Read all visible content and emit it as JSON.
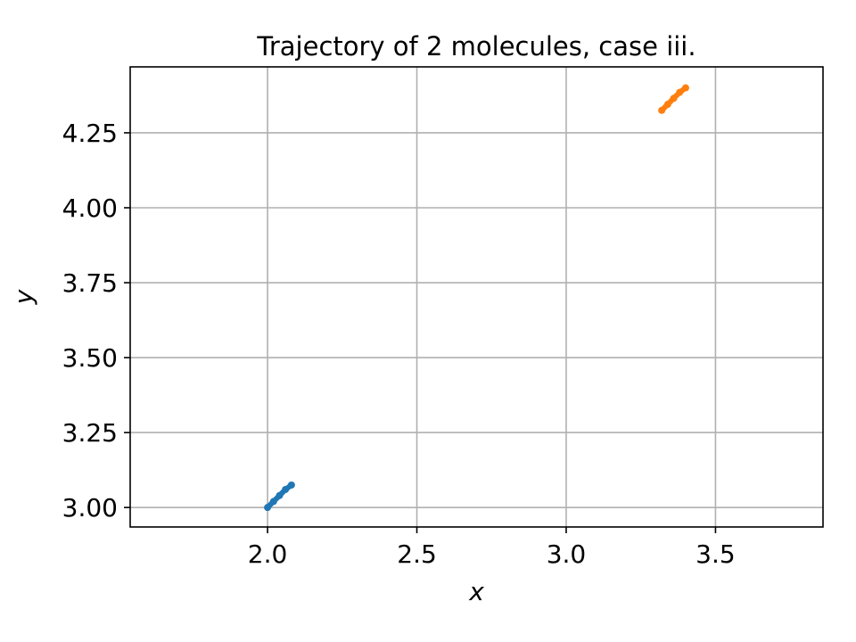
{
  "chart_data": {
    "type": "line",
    "title": "Trajectory of 2 molecules, case iii.",
    "xlabel": "x",
    "ylabel": "y",
    "xlim": [
      1.54,
      3.86
    ],
    "ylim": [
      2.935,
      4.47
    ],
    "xticks": [
      2.0,
      2.5,
      3.0,
      3.5
    ],
    "xtick_labels": [
      "2.0",
      "2.5",
      "3.0",
      "3.5"
    ],
    "yticks": [
      3.0,
      3.25,
      3.5,
      3.75,
      4.0,
      4.25
    ],
    "ytick_labels": [
      "3.00",
      "3.25",
      "3.50",
      "3.75",
      "4.00",
      "4.25"
    ],
    "grid": true,
    "series": [
      {
        "color": "#1f77b4",
        "x": [
          2.0,
          2.02,
          2.04,
          2.06,
          2.08
        ],
        "y": [
          3.0,
          3.02,
          3.04,
          3.06,
          3.075
        ]
      },
      {
        "color": "#ff7f0e",
        "x": [
          3.32,
          3.34,
          3.36,
          3.38,
          3.4
        ],
        "y": [
          4.325,
          4.345,
          4.365,
          4.385,
          4.4
        ]
      }
    ]
  }
}
